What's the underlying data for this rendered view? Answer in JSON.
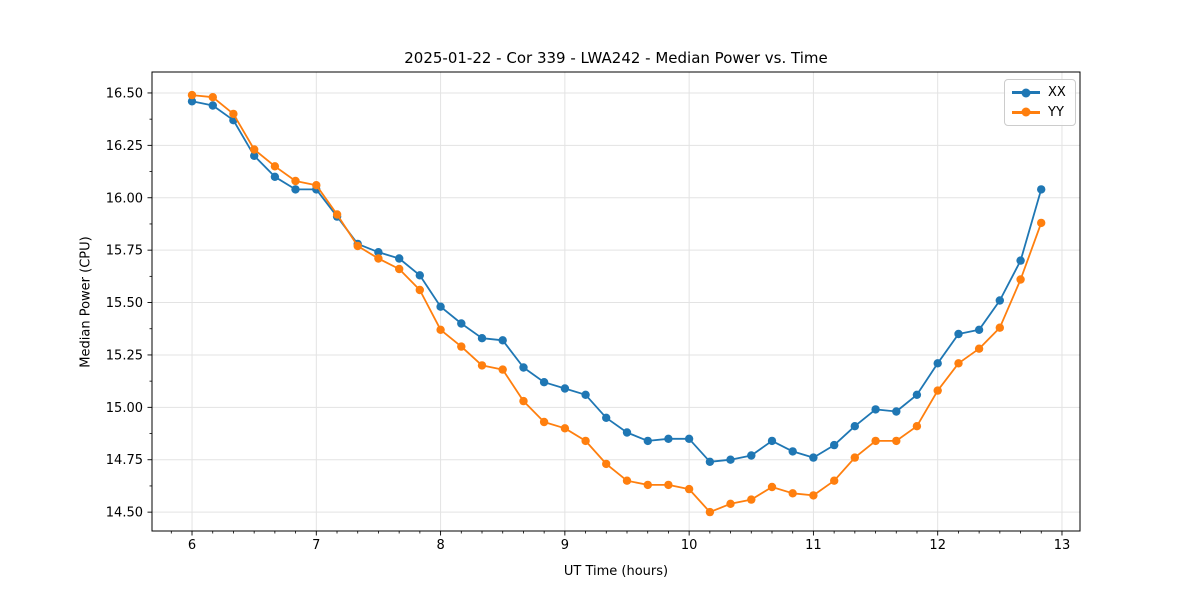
{
  "chart_data": {
    "type": "line",
    "title": "2025-01-22 - Cor 339 - LWA242 - Median Power vs. Time",
    "xlabel": "UT Time (hours)",
    "ylabel": "Median Power (CPU)",
    "xlim": [
      5.678,
      13.145
    ],
    "ylim": [
      14.41,
      16.6
    ],
    "x_ticks": [
      6,
      7,
      8,
      9,
      10,
      11,
      12,
      13
    ],
    "y_ticks": [
      14.5,
      14.75,
      15.0,
      15.25,
      15.5,
      15.75,
      16.0,
      16.25,
      16.5
    ],
    "x_minor_per_major": 6,
    "y_minor_per_major": 2,
    "grid": true,
    "grid_color": "#e3e3e3",
    "spine_color": "#000000",
    "legend_position": "upper right",
    "marker": "circle",
    "x": [
      6,
      6.167,
      6.333,
      6.5,
      6.667,
      6.833,
      7,
      7.167,
      7.333,
      7.5,
      7.667,
      7.833,
      8,
      8.167,
      8.333,
      8.5,
      8.667,
      8.833,
      9,
      9.167,
      9.333,
      9.5,
      9.667,
      9.833,
      10,
      10.167,
      10.333,
      10.5,
      10.667,
      10.833,
      11,
      11.167,
      11.333,
      11.5,
      11.667,
      11.833,
      12,
      12.167,
      12.333,
      12.5,
      12.667,
      12.833
    ],
    "series": [
      {
        "name": "XX",
        "color": "#1f77b4",
        "values": [
          16.46,
          16.44,
          16.37,
          16.2,
          16.1,
          16.04,
          16.04,
          15.91,
          15.78,
          15.74,
          15.71,
          15.63,
          15.48,
          15.4,
          15.33,
          15.32,
          15.19,
          15.12,
          15.09,
          15.06,
          14.95,
          14.88,
          14.84,
          14.85,
          14.85,
          14.74,
          14.75,
          14.77,
          14.84,
          14.79,
          14.76,
          14.82,
          14.91,
          14.99,
          14.98,
          15.06,
          15.21,
          15.35,
          15.37,
          15.51,
          15.7,
          16.04
        ]
      },
      {
        "name": "YY",
        "color": "#ff7f0e",
        "values": [
          16.49,
          16.48,
          16.4,
          16.23,
          16.15,
          16.08,
          16.06,
          15.92,
          15.77,
          15.71,
          15.66,
          15.56,
          15.37,
          15.29,
          15.2,
          15.18,
          15.03,
          14.93,
          14.9,
          14.84,
          14.73,
          14.65,
          14.63,
          14.63,
          14.61,
          14.5,
          14.54,
          14.56,
          14.62,
          14.59,
          14.58,
          14.65,
          14.76,
          14.84,
          14.84,
          14.91,
          15.08,
          15.21,
          15.28,
          15.38,
          15.61,
          15.88
        ]
      }
    ]
  }
}
